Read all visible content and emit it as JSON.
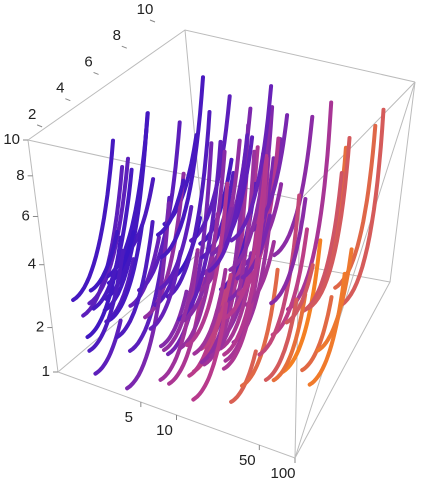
{
  "chart_data": {
    "type": "streamplot3d",
    "xlim": [
      1,
      100
    ],
    "xticks": [
      5,
      10,
      50,
      100
    ],
    "xscale": "log",
    "ylim": [
      1,
      10
    ],
    "yticks": [
      2,
      4,
      6,
      8,
      10
    ],
    "yscale": "linear",
    "zlim": [
      1,
      10
    ],
    "zticks": [
      1,
      2,
      4,
      6,
      8,
      10
    ],
    "zscale": "sqrt",
    "colors": [
      "#3414c4",
      "#6a22b8",
      "#b83a8c",
      "#ff8c10"
    ]
  }
}
